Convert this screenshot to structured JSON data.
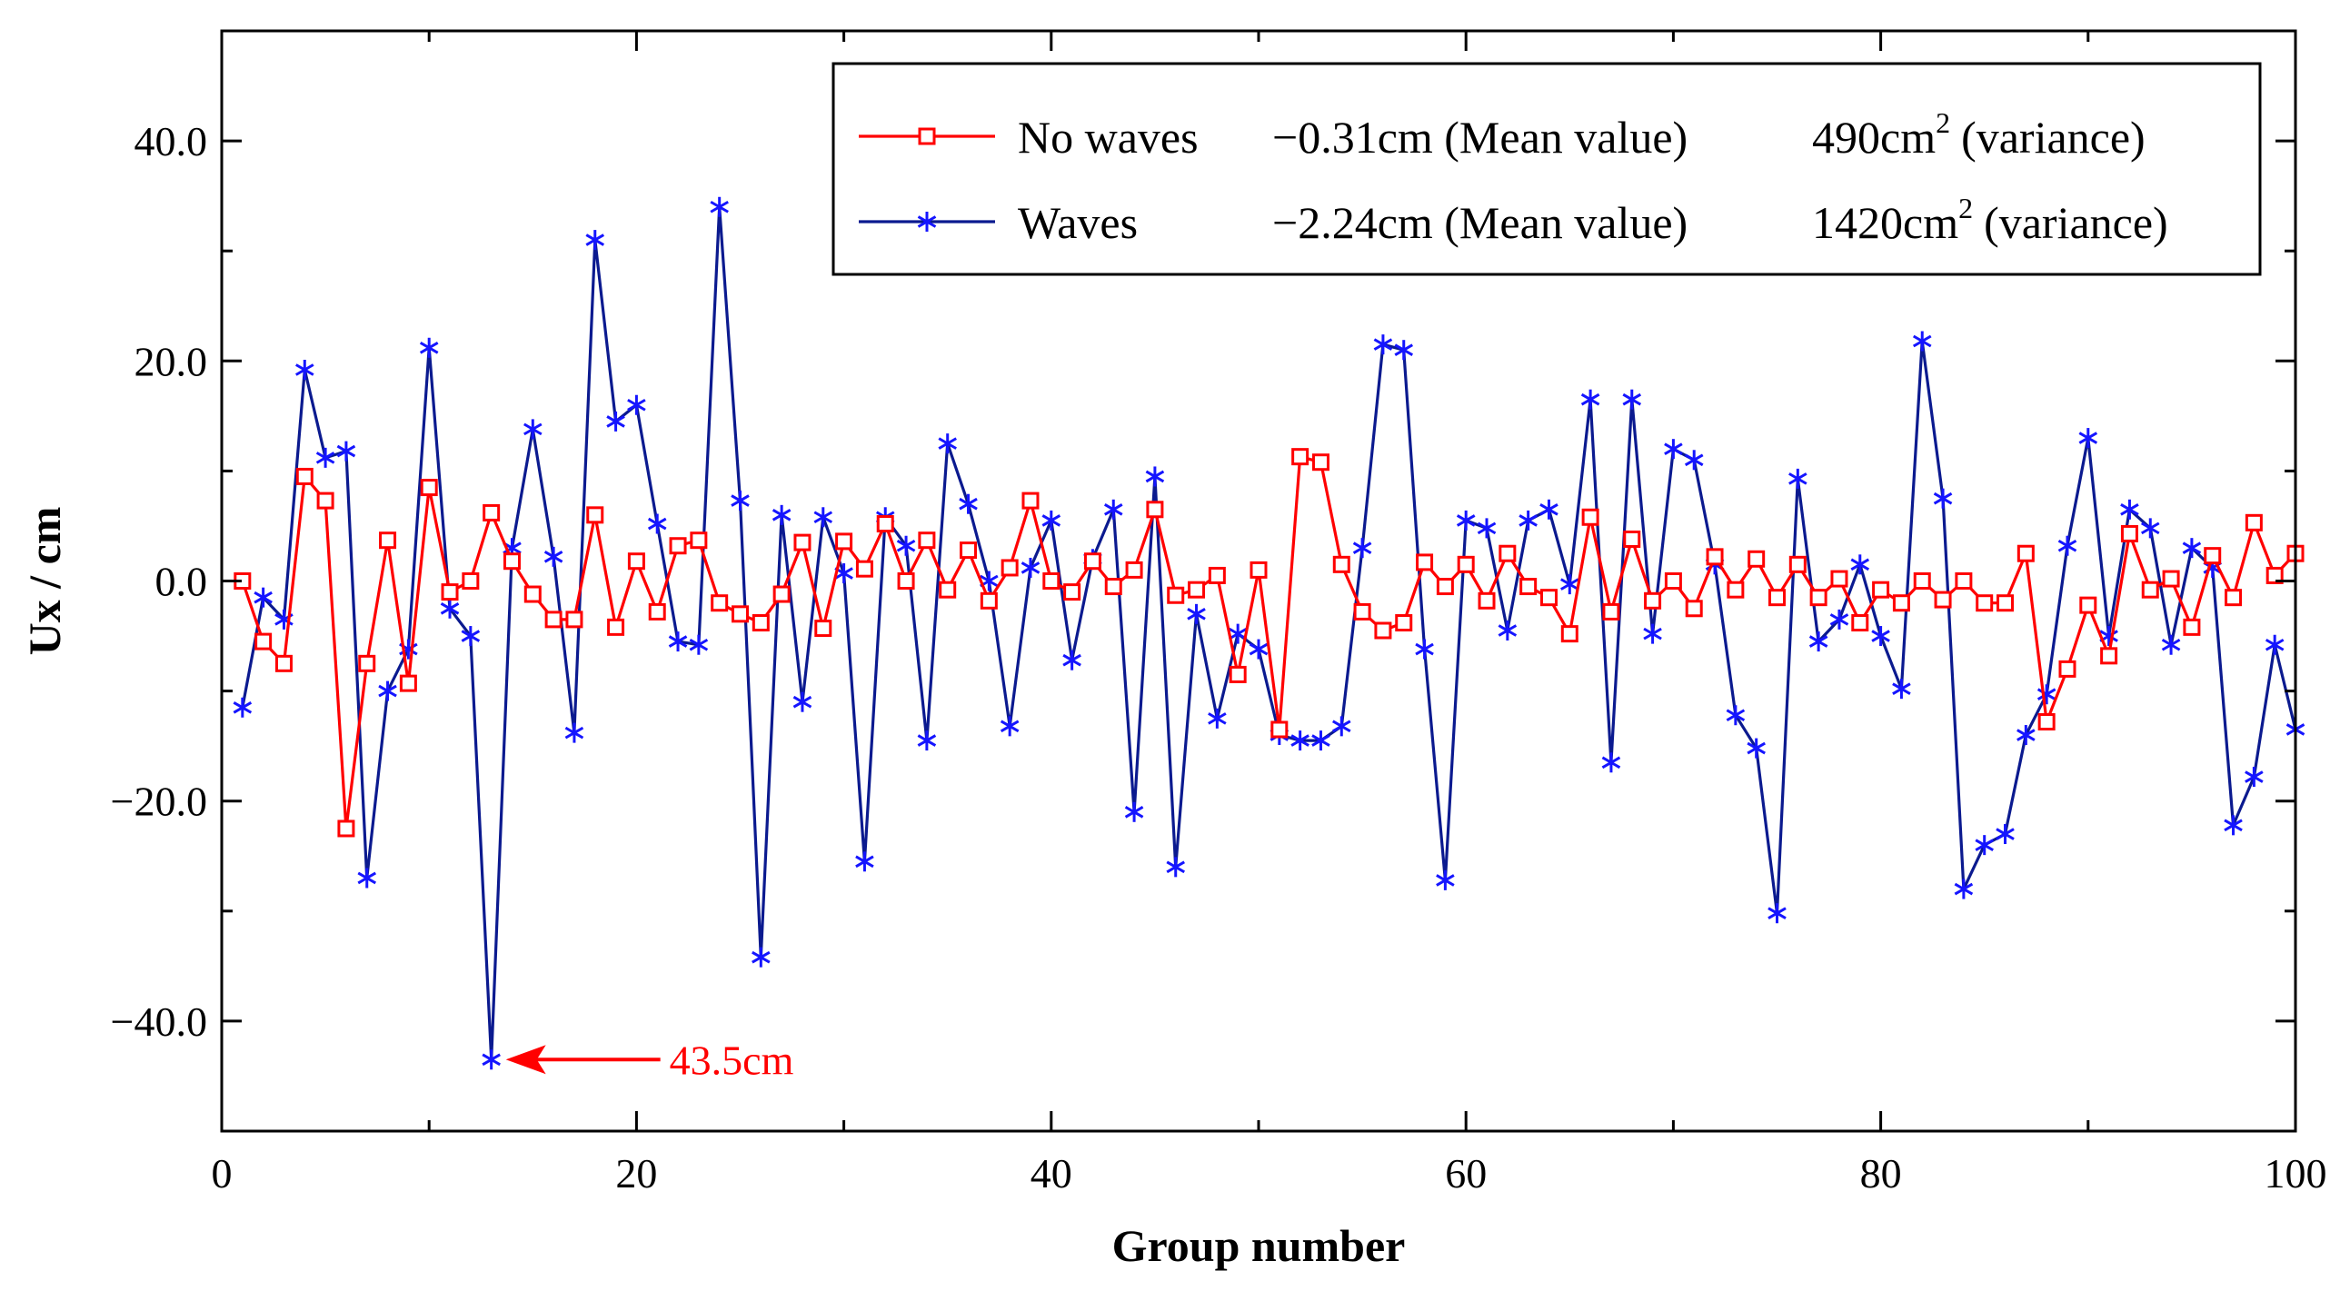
{
  "chart_data": {
    "type": "line",
    "xlabel": "Group number",
    "ylabel": "Ux / cm",
    "xlim": [
      0,
      100
    ],
    "ylim": [
      -50,
      50
    ],
    "x_ticks": [
      0,
      20,
      40,
      60,
      80,
      100
    ],
    "x_tick_labels": [
      "0",
      "20",
      "40",
      "60",
      "80",
      "100"
    ],
    "y_ticks": [
      40,
      20,
      0,
      -20,
      -40
    ],
    "y_tick_labels": [
      "40.0",
      "20.0",
      "0.0",
      "−20.0",
      "−40.0"
    ],
    "grid": false,
    "legend_position": "top-right",
    "legend": [
      {
        "series": "No waves",
        "mean": "−0.31cm (Mean value)",
        "variance_value": "490cm",
        "variance_sup": "2",
        "variance_suffix": "(variance)"
      },
      {
        "series": "Waves",
        "mean": "−2.24cm (Mean value)",
        "variance_value": "1420cm",
        "variance_sup": "2",
        "variance_suffix": "(variance)"
      }
    ],
    "annotation": {
      "text": "43.5cm",
      "x": 13,
      "y": -43.5,
      "color": "#ff0000"
    },
    "series": [
      {
        "name": "No waves",
        "color": "#ff0000",
        "marker": "square",
        "x": [
          1,
          2,
          3,
          4,
          5,
          6,
          7,
          8,
          9,
          10,
          11,
          12,
          13,
          14,
          15,
          16,
          17,
          18,
          19,
          20,
          21,
          22,
          23,
          24,
          25,
          26,
          27,
          28,
          29,
          30,
          31,
          32,
          33,
          34,
          35,
          36,
          37,
          38,
          39,
          40,
          41,
          42,
          43,
          44,
          45,
          46,
          47,
          48,
          49,
          50,
          51,
          52,
          53,
          54,
          55,
          56,
          57,
          58,
          59,
          60,
          61,
          62,
          63,
          64,
          65,
          66,
          67,
          68,
          69,
          70,
          71,
          72,
          73,
          74,
          75,
          76,
          77,
          78,
          79,
          80,
          81,
          82,
          83,
          84,
          85,
          86,
          87,
          88,
          89,
          90,
          91,
          92,
          93,
          94,
          95,
          96,
          97,
          98,
          99,
          100
        ],
        "y": [
          0,
          -5.5,
          -7.5,
          9.5,
          7.3,
          -22.5,
          -7.5,
          3.7,
          -9.3,
          8.5,
          -1,
          0,
          6.2,
          1.8,
          -1.2,
          -3.5,
          -3.5,
          6,
          -4.2,
          1.8,
          -2.8,
          3.2,
          3.7,
          -2,
          -3,
          -3.8,
          -1.2,
          3.5,
          -4.3,
          3.6,
          1.1,
          5.2,
          0,
          3.7,
          -0.8,
          2.8,
          -1.8,
          1.2,
          7.3,
          0,
          -1,
          1.8,
          -0.5,
          1,
          6.5,
          -1.3,
          -0.8,
          0.5,
          -8.5,
          1,
          -13.5,
          11.3,
          10.8,
          1.5,
          -2.8,
          -4.5,
          -3.8,
          1.7,
          -0.5,
          1.5,
          -1.8,
          2.5,
          -0.5,
          -1.5,
          -4.8,
          5.8,
          -2.8,
          3.8,
          -1.8,
          0,
          -2.5,
          2.2,
          -0.8,
          2,
          -1.5,
          1.5,
          -1.5,
          0.2,
          -3.8,
          -0.8,
          -2,
          0,
          -1.7,
          0,
          -2,
          -2,
          2.5,
          -12.8,
          -8,
          -2.2,
          -6.8,
          4.3,
          -0.8,
          0.2,
          -4.2,
          2.3,
          -1.5,
          5.3,
          0.5,
          2.5
        ]
      },
      {
        "name": "Waves",
        "color": "#0b1a8f",
        "marker_color": "#1515ff",
        "marker": "asterisk",
        "x": [
          1,
          2,
          3,
          4,
          5,
          6,
          7,
          8,
          9,
          10,
          11,
          12,
          13,
          14,
          15,
          16,
          17,
          18,
          19,
          20,
          21,
          22,
          23,
          24,
          25,
          26,
          27,
          28,
          29,
          30,
          31,
          32,
          33,
          34,
          35,
          36,
          37,
          38,
          39,
          40,
          41,
          42,
          43,
          44,
          45,
          46,
          47,
          48,
          49,
          50,
          51,
          52,
          53,
          54,
          55,
          56,
          57,
          58,
          59,
          60,
          61,
          62,
          63,
          64,
          65,
          66,
          67,
          68,
          69,
          70,
          71,
          72,
          73,
          74,
          75,
          76,
          77,
          78,
          79,
          80,
          81,
          82,
          83,
          84,
          85,
          86,
          87,
          88,
          89,
          90,
          91,
          92,
          93,
          94,
          95,
          96,
          97,
          98,
          99,
          100
        ],
        "y": [
          -11.5,
          -1.5,
          -3.5,
          19.2,
          11.2,
          11.8,
          -27,
          -10,
          -6.2,
          21.2,
          -2.5,
          -5,
          -43.5,
          3,
          13.8,
          2.2,
          -13.8,
          31,
          14.5,
          16,
          5.2,
          -5.5,
          -5.8,
          34,
          7.3,
          -34.2,
          6,
          -11,
          5.8,
          0.7,
          -25.5,
          5.8,
          3.2,
          -14.5,
          12.5,
          7,
          0,
          -13.2,
          1.2,
          5.5,
          -7.2,
          2,
          6.5,
          -21,
          9.5,
          -26,
          -3,
          -12.5,
          -4.8,
          -6.2,
          -14,
          -14.5,
          -14.5,
          -13.2,
          3,
          21.5,
          21,
          -6.2,
          -27.2,
          5.5,
          4.8,
          -4.5,
          5.5,
          6.5,
          -0.3,
          16.5,
          -16.5,
          16.5,
          -4.8,
          12,
          11,
          1.5,
          -12.2,
          -15.2,
          -30.2,
          9.3,
          -5.5,
          -3.5,
          1.5,
          -5,
          -9.8,
          21.8,
          7.5,
          -28,
          -24,
          -23,
          -14,
          -10.3,
          3.2,
          13,
          -5,
          6.5,
          4.8,
          -5.8,
          3,
          1.2,
          -22.2,
          -17.8,
          -5.8,
          -13.5
        ]
      }
    ]
  }
}
